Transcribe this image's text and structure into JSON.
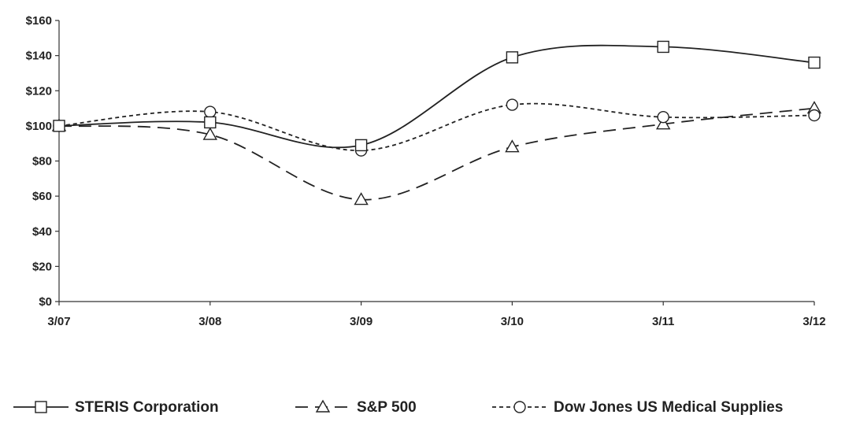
{
  "chart_data": {
    "type": "line",
    "categories": [
      "3/07",
      "3/08",
      "3/09",
      "3/10",
      "3/11",
      "3/12"
    ],
    "y_ticks": [
      "$0",
      "$20",
      "$40",
      "$60",
      "$80",
      "$100",
      "$120",
      "$140",
      "$160"
    ],
    "ylim": [
      0,
      160
    ],
    "grid": false,
    "legend_position": "bottom",
    "series": [
      {
        "name": "STERIS Corporation",
        "values": [
          100,
          102,
          89,
          139,
          145,
          136
        ],
        "marker": "square",
        "dash": "solid",
        "color": "#222222"
      },
      {
        "name": "S&P 500",
        "values": [
          100,
          95,
          58,
          88,
          101,
          110
        ],
        "marker": "triangle",
        "dash": "long-dash",
        "color": "#222222"
      },
      {
        "name": "Dow Jones US Medical Supplies",
        "values": [
          100,
          108,
          86,
          112,
          105,
          106
        ],
        "marker": "circle",
        "dash": "short-dash",
        "color": "#222222"
      }
    ]
  }
}
